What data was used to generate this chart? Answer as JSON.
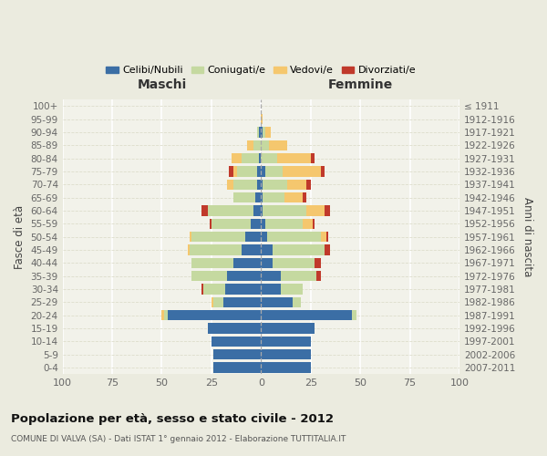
{
  "age_groups": [
    "0-4",
    "5-9",
    "10-14",
    "15-19",
    "20-24",
    "25-29",
    "30-34",
    "35-39",
    "40-44",
    "45-49",
    "50-54",
    "55-59",
    "60-64",
    "65-69",
    "70-74",
    "75-79",
    "80-84",
    "85-89",
    "90-94",
    "95-99",
    "100+"
  ],
  "birth_years": [
    "2007-2011",
    "2002-2006",
    "1997-2001",
    "1992-1996",
    "1987-1991",
    "1982-1986",
    "1977-1981",
    "1972-1976",
    "1967-1971",
    "1962-1966",
    "1957-1961",
    "1952-1956",
    "1947-1951",
    "1942-1946",
    "1937-1941",
    "1932-1936",
    "1927-1931",
    "1922-1926",
    "1917-1921",
    "1912-1916",
    "≤ 1911"
  ],
  "maschi": {
    "celibi": [
      24,
      24,
      25,
      27,
      47,
      19,
      18,
      17,
      14,
      10,
      8,
      5,
      4,
      3,
      2,
      2,
      1,
      0,
      1,
      0,
      0
    ],
    "coniugati": [
      0,
      0,
      0,
      0,
      2,
      5,
      11,
      18,
      21,
      26,
      27,
      20,
      23,
      11,
      12,
      10,
      9,
      4,
      1,
      0,
      0
    ],
    "vedovi": [
      0,
      0,
      0,
      0,
      1,
      1,
      0,
      0,
      0,
      1,
      1,
      0,
      0,
      0,
      3,
      2,
      5,
      3,
      0,
      0,
      0
    ],
    "divorziati": [
      0,
      0,
      0,
      0,
      0,
      0,
      1,
      0,
      0,
      0,
      0,
      1,
      3,
      0,
      0,
      2,
      0,
      0,
      0,
      0,
      0
    ]
  },
  "femmine": {
    "nubili": [
      25,
      25,
      25,
      27,
      46,
      16,
      10,
      10,
      6,
      6,
      3,
      2,
      1,
      1,
      1,
      2,
      0,
      0,
      1,
      0,
      0
    ],
    "coniugate": [
      0,
      0,
      0,
      0,
      2,
      4,
      11,
      18,
      21,
      26,
      27,
      19,
      22,
      11,
      12,
      9,
      8,
      4,
      1,
      0,
      0
    ],
    "vedove": [
      0,
      0,
      0,
      0,
      0,
      0,
      0,
      0,
      0,
      0,
      3,
      5,
      9,
      9,
      10,
      19,
      17,
      9,
      3,
      1,
      0
    ],
    "divorziate": [
      0,
      0,
      0,
      0,
      0,
      0,
      0,
      2,
      3,
      3,
      1,
      1,
      3,
      2,
      2,
      2,
      2,
      0,
      0,
      0,
      0
    ]
  },
  "colors": {
    "celibi": "#3b6ea5",
    "coniugati": "#c5d9a0",
    "vedovi": "#f5c76e",
    "divorziati": "#c0392b"
  },
  "xlim": 100,
  "title": "Popolazione per età, sesso e stato civile - 2012",
  "subtitle": "COMUNE DI VALVA (SA) - Dati ISTAT 1° gennaio 2012 - Elaborazione TUTTITALIA.IT",
  "ylabel": "Fasce di età",
  "ylabel_right": "Anni di nascita",
  "xlabel_maschi": "Maschi",
  "xlabel_femmine": "Femmine",
  "bg_color": "#ebebdf",
  "plot_bg_color": "#f2f2ea"
}
